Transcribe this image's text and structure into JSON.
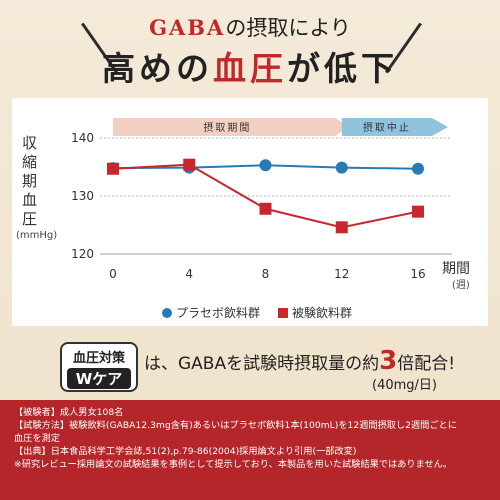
{
  "headline": {
    "line1_brand": "GABA",
    "line1_rest": "の摂取により",
    "line2_pre": "高めの",
    "line2_highlight": "血圧",
    "line2_post": "が低下"
  },
  "chart_data": {
    "type": "line",
    "x": [
      0,
      4,
      8,
      12,
      16
    ],
    "xlabel": "期間",
    "xunit": "(週)",
    "ylabel": "収縮期血圧",
    "yunit": "(mmHg)",
    "ylim": [
      120,
      140
    ],
    "yticks": [
      120,
      130,
      140
    ],
    "grid": true,
    "legend_placement": "bottom",
    "phases": [
      {
        "label": "摂取期間",
        "x_range": [
          0,
          12
        ],
        "color": "#f1d0c1"
      },
      {
        "label": "摂取中止",
        "x_range": [
          12,
          16
        ],
        "color": "#8fc3de"
      }
    ],
    "series": [
      {
        "name": "プラセボ飲料群",
        "color": "#2a7ab5",
        "marker": "circle",
        "values": [
          134.8,
          134.9,
          135.3,
          134.9,
          134.7
        ]
      },
      {
        "name": "被験飲料群",
        "color": "#c9272d",
        "marker": "square",
        "values": [
          134.7,
          135.4,
          127.8,
          124.6,
          127.3
        ]
      }
    ]
  },
  "badge": {
    "line1": "血圧対策",
    "line2": "Wケア"
  },
  "claim": {
    "pre": "は、GABAを試験時摂取量の約",
    "number": "3",
    "post": "倍配合!",
    "sub": "(40mg/日)"
  },
  "notes": [
    "【被験者】成人男女108名",
    "【試験方法】被験飲料(GABA12.3mg含有)あるいはプラセボ飲料1本(100mL)を12週間摂取し2週間ごとに",
    "血圧を測定",
    "【出典】日本食品科学工学会誌,51(2),p.79-86(2004)採用論文より引用(一部改変)",
    "",
    "※研究レビュー採用論文の試験結果を事例として提示しており、本製品を用いた試験結果ではありません。"
  ]
}
